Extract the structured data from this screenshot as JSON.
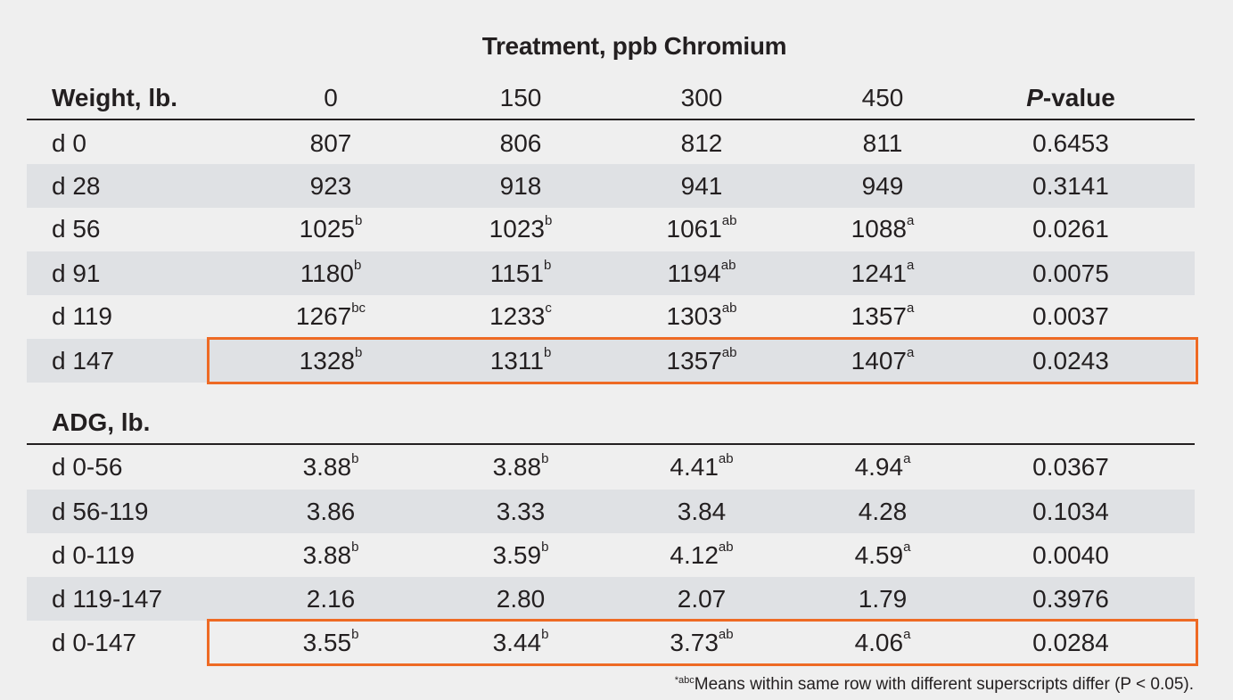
{
  "title": "Treatment, ppb Chromium",
  "header": {
    "first": "Weight, lb.",
    "columns": [
      "0",
      "150",
      "300",
      "450"
    ],
    "pvalue_italic": "P",
    "pvalue_rest": "-value"
  },
  "weight_rows": [
    {
      "label": "d 0",
      "vals": [
        {
          "v": "807",
          "s": ""
        },
        {
          "v": "806",
          "s": ""
        },
        {
          "v": "812",
          "s": ""
        },
        {
          "v": "811",
          "s": ""
        }
      ],
      "p": "0.6453"
    },
    {
      "label": "d 28",
      "vals": [
        {
          "v": "923",
          "s": ""
        },
        {
          "v": "918",
          "s": ""
        },
        {
          "v": "941",
          "s": ""
        },
        {
          "v": "949",
          "s": ""
        }
      ],
      "p": "0.3141"
    },
    {
      "label": "d 56",
      "vals": [
        {
          "v": "1025",
          "s": "b"
        },
        {
          "v": "1023",
          "s": "b"
        },
        {
          "v": "1061",
          "s": "ab"
        },
        {
          "v": "1088",
          "s": "a"
        }
      ],
      "p": "0.0261"
    },
    {
      "label": "d 91",
      "vals": [
        {
          "v": "1180",
          "s": "b"
        },
        {
          "v": "1151",
          "s": "b"
        },
        {
          "v": "1194",
          "s": "ab"
        },
        {
          "v": "1241",
          "s": "a"
        }
      ],
      "p": "0.0075"
    },
    {
      "label": "d 119",
      "vals": [
        {
          "v": "1267",
          "s": "bc"
        },
        {
          "v": "1233",
          "s": "c"
        },
        {
          "v": "1303",
          "s": "ab"
        },
        {
          "v": "1357",
          "s": "a"
        }
      ],
      "p": "0.0037"
    },
    {
      "label": "d 147",
      "vals": [
        {
          "v": "1328",
          "s": "b"
        },
        {
          "v": "1311",
          "s": "b"
        },
        {
          "v": "1357",
          "s": "ab"
        },
        {
          "v": "1407",
          "s": "a"
        }
      ],
      "p": "0.0243"
    }
  ],
  "adg_label": "ADG, lb.",
  "adg_rows": [
    {
      "label": "d 0-56",
      "vals": [
        {
          "v": "3.88",
          "s": "b"
        },
        {
          "v": "3.88",
          "s": "b"
        },
        {
          "v": "4.41",
          "s": "ab"
        },
        {
          "v": "4.94",
          "s": "a"
        }
      ],
      "p": "0.0367"
    },
    {
      "label": "d 56-119",
      "vals": [
        {
          "v": "3.86",
          "s": ""
        },
        {
          "v": "3.33",
          "s": ""
        },
        {
          "v": "3.84",
          "s": ""
        },
        {
          "v": "4.28",
          "s": ""
        }
      ],
      "p": "0.1034"
    },
    {
      "label": "d 0-119",
      "vals": [
        {
          "v": "3.88",
          "s": "b"
        },
        {
          "v": "3.59",
          "s": "b"
        },
        {
          "v": "4.12",
          "s": "ab"
        },
        {
          "v": "4.59",
          "s": "a"
        }
      ],
      "p": "0.0040"
    },
    {
      "label": "d 119-147",
      "vals": [
        {
          "v": "2.16",
          "s": ""
        },
        {
          "v": "2.80",
          "s": ""
        },
        {
          "v": "2.07",
          "s": ""
        },
        {
          "v": "1.79",
          "s": ""
        }
      ],
      "p": "0.3976"
    },
    {
      "label": "d 0-147",
      "vals": [
        {
          "v": "3.55",
          "s": "b"
        },
        {
          "v": "3.44",
          "s": "b"
        },
        {
          "v": "3.73",
          "s": "ab"
        },
        {
          "v": "4.06",
          "s": "a"
        }
      ],
      "p": "0.0284"
    }
  ],
  "footnote": {
    "sup": "*abc",
    "text": "Means within same row with different superscripts differ (P < 0.05)."
  },
  "colors": {
    "highlight_border": "#ee6a24",
    "shaded_row": "#dfe1e4",
    "background": "#efefef"
  }
}
